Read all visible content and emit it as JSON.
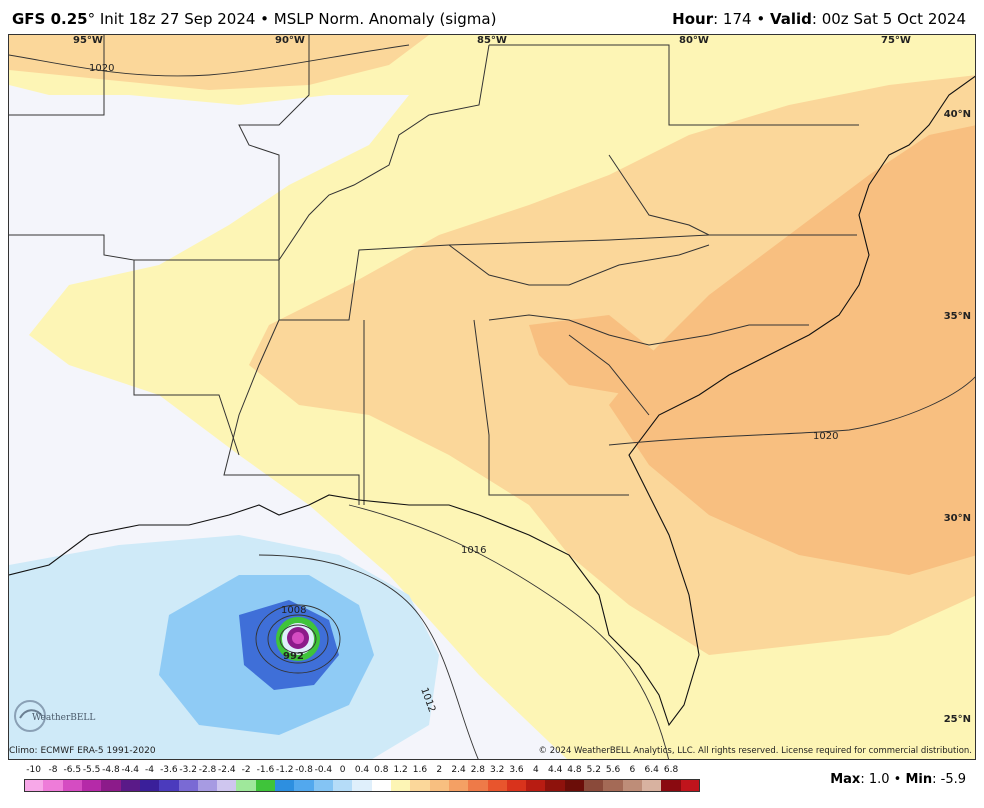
{
  "header": {
    "model": "GFS 0.25",
    "degree": "°",
    "init": " Init 18z 27 Sep 2024",
    "sep": " • ",
    "product": "MSLP Norm. Anomaly (sigma)",
    "hour_label": "Hour",
    "hour_value": ": 174",
    "valid_label": "Valid",
    "valid_value": ": 00z Sat 5 Oct 2024"
  },
  "map": {
    "longitudes": [
      "95°W",
      "90°W",
      "85°W",
      "80°W",
      "75°W"
    ],
    "latitudes": [
      "40°N",
      "35°N",
      "30°N",
      "25°N"
    ],
    "isobars": [
      "1020",
      "1020",
      "1016",
      "1012",
      "1008",
      "992"
    ],
    "colors": {
      "pos_light": "#fdf5b5",
      "pos_medium": "#fbd79a",
      "pos_strong": "#f8bf80",
      "neg_light": "#cfeaf8",
      "neg_medium": "#8fcbf5",
      "neg_strong": "#3f6fd8",
      "background": "#f4f5fb",
      "state_lines": "#333333",
      "county_lines": "#b5b5b5"
    }
  },
  "footer": {
    "climo": "Climo: ECMWF ERA-5 1991-2020",
    "copyright": "© 2024 WeatherBELL Analytics, LLC. All rights reserved. License required for commercial distribution.",
    "logo_text": "WeatherBELL",
    "max_label": "Max",
    "max_value": ": 1.0",
    "sep": " • ",
    "min_label": "Min",
    "min_value": ": -5.9"
  },
  "colorbar": {
    "labels": [
      "-10",
      "-8",
      "-6.5",
      "-5.5",
      "-4.8",
      "-4.4",
      "-4",
      "-3.6",
      "-3.2",
      "-2.8",
      "-2.4",
      "-2",
      "-1.6",
      "-1.2",
      "-0.8",
      "-0.4",
      "0",
      "0.4",
      "0.8",
      "1.2",
      "1.6",
      "2",
      "2.4",
      "2.8",
      "3.2",
      "3.6",
      "4",
      "4.4",
      "4.8",
      "5.2",
      "5.6",
      "6",
      "6.4",
      "6.8"
    ],
    "colors": [
      "#f7a8e8",
      "#ee7cd9",
      "#d54cc2",
      "#b52aa8",
      "#8c1b8a",
      "#5a1a88",
      "#3a1f9a",
      "#4b3bbd",
      "#7a6ad4",
      "#a79be2",
      "#cfc6ef",
      "#9fe89b",
      "#3fc43a",
      "#2d8fe0",
      "#52a8ee",
      "#84c4f4",
      "#b5dcf8",
      "#dfeffb",
      "#ffffff",
      "#fdf5b5",
      "#fbd79a",
      "#f8bf80",
      "#f4a064",
      "#ee7a48",
      "#e8552d",
      "#d9331c",
      "#b81c12",
      "#8e120c",
      "#6b0d08",
      "#8a4a3a",
      "#a46a56",
      "#be8d78",
      "#d8b2a0",
      "#8a0a10",
      "#c0141c"
    ]
  }
}
